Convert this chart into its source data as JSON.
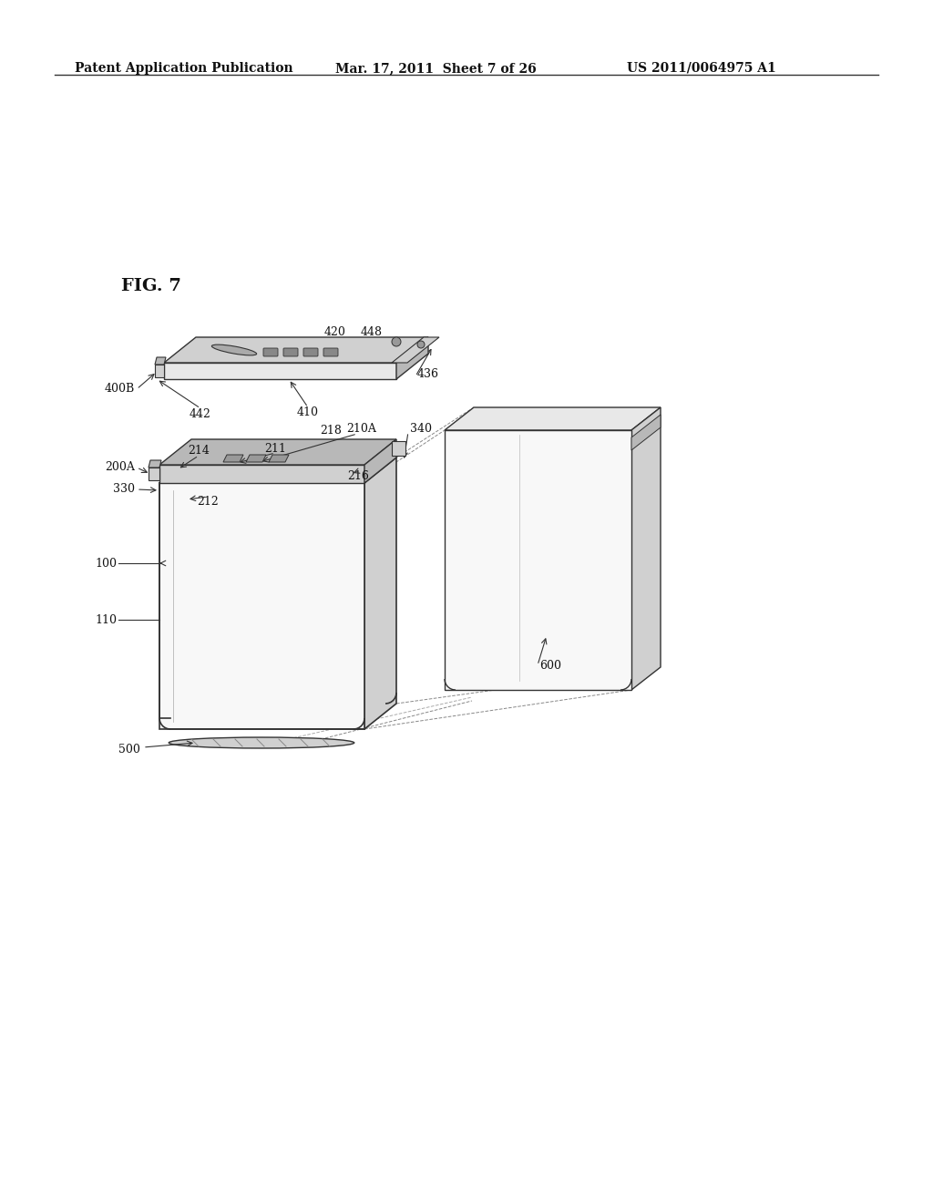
{
  "background_color": "#ffffff",
  "header_left": "Patent Application Publication",
  "header_mid": "Mar. 17, 2011  Sheet 7 of 26",
  "header_right": "US 2011/0064975 A1",
  "fig_label": "FIG. 7",
  "line_color": "#333333",
  "face_white": "#f8f8f8",
  "face_light": "#e8e8e8",
  "face_mid": "#d0d0d0",
  "face_dark": "#b8b8b8"
}
